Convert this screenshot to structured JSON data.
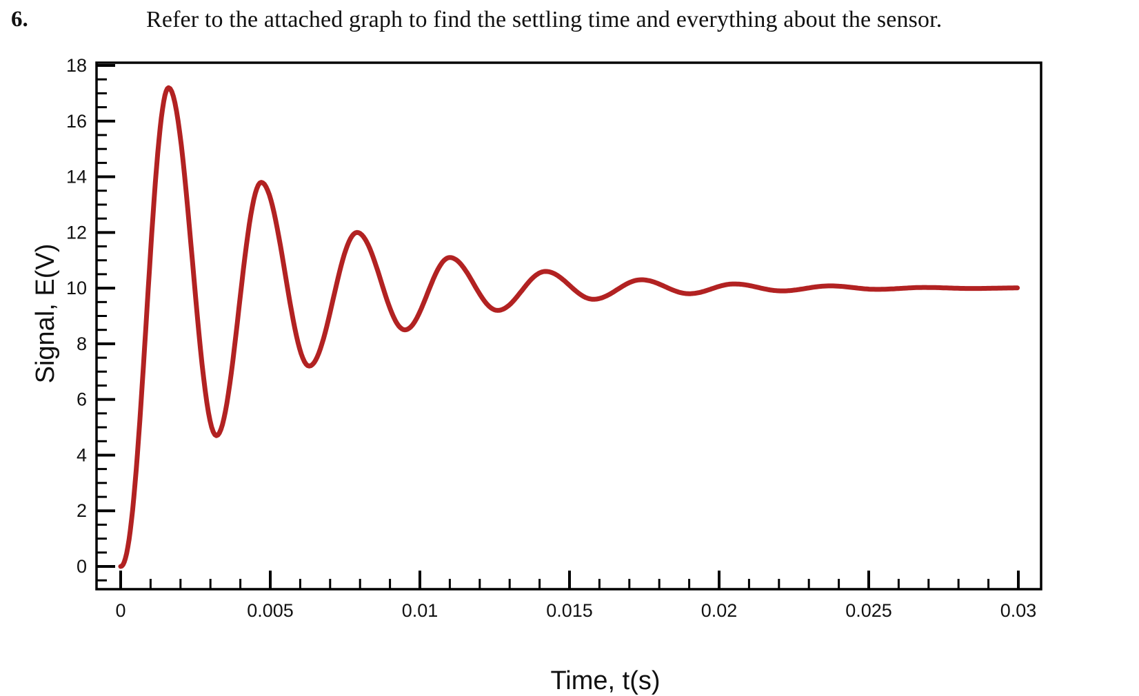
{
  "question": {
    "number": "6.",
    "text": "Refer to the attached graph to find the settling time and everything about the sensor."
  },
  "colors": {
    "curve": "#b22222",
    "axis": "#000000",
    "background": "#ffffff"
  },
  "chart_data": {
    "type": "line",
    "title": "",
    "xlabel": "Time, t(s)",
    "ylabel": "Signal, E(V)",
    "xlim": [
      0,
      0.03
    ],
    "ylim": [
      0,
      18
    ],
    "x_ticks": [
      "0",
      "0.005",
      "0.01",
      "0.015",
      "0.02",
      "0.025",
      "0.03"
    ],
    "y_ticks": [
      "0",
      "2",
      "4",
      "6",
      "8",
      "10",
      "12",
      "14",
      "16",
      "18"
    ],
    "grid": false,
    "legend": null,
    "final_value": 10,
    "series": [
      {
        "name": "Signal",
        "color": "#b22222",
        "x": [
          0,
          0.0003,
          0.0006,
          0.0009,
          0.0012,
          0.0016,
          0.002,
          0.0024,
          0.0028,
          0.0032,
          0.0036,
          0.004,
          0.0044,
          0.0047,
          0.005,
          0.0054,
          0.0058,
          0.0063,
          0.0067,
          0.0071,
          0.0075,
          0.0079,
          0.0083,
          0.0087,
          0.0091,
          0.0095,
          0.0099,
          0.0103,
          0.0107,
          0.011,
          0.0114,
          0.0118,
          0.0122,
          0.0126,
          0.013,
          0.0134,
          0.0138,
          0.0142,
          0.0146,
          0.015,
          0.0154,
          0.0158,
          0.0162,
          0.0166,
          0.017,
          0.0174,
          0.0178,
          0.0182,
          0.0186,
          0.019,
          0.0194,
          0.0198,
          0.0202,
          0.0205,
          0.0209,
          0.0213,
          0.0217,
          0.0221,
          0.0225,
          0.0229,
          0.0233,
          0.0237,
          0.0241,
          0.0245,
          0.0249,
          0.0253,
          0.0257,
          0.0261,
          0.0265,
          0.0269,
          0.0273,
          0.0277,
          0.0281,
          0.0285,
          0.0289,
          0.0293,
          0.0297,
          0.03
        ],
        "peaks": [
          {
            "t": 0.0016,
            "E": 17.2
          },
          {
            "t": 0.0047,
            "E": 13.8
          },
          {
            "t": 0.0079,
            "E": 12.0
          },
          {
            "t": 0.011,
            "E": 11.1
          },
          {
            "t": 0.0142,
            "E": 10.6
          },
          {
            "t": 0.0174,
            "E": 10.3
          },
          {
            "t": 0.0205,
            "E": 10.15
          },
          {
            "t": 0.0237,
            "E": 10.08
          }
        ],
        "troughs": [
          {
            "t": 0.0032,
            "E": 4.7
          },
          {
            "t": 0.0063,
            "E": 7.2
          },
          {
            "t": 0.0095,
            "E": 8.5
          },
          {
            "t": 0.0126,
            "E": 9.2
          },
          {
            "t": 0.0158,
            "E": 9.6
          },
          {
            "t": 0.019,
            "E": 9.8
          },
          {
            "t": 0.0221,
            "E": 9.9
          }
        ]
      }
    ]
  }
}
